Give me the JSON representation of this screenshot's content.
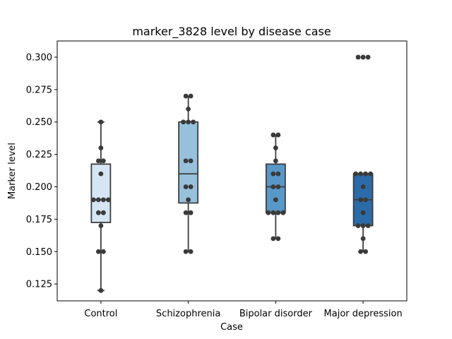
{
  "chart_data": {
    "type": "box",
    "title": "marker_3828 level by disease case",
    "xlabel": "Case",
    "ylabel": "Marker level",
    "ylim": [
      0.112,
      0.3125
    ],
    "yticks": [
      "0.125",
      "0.150",
      "0.175",
      "0.200",
      "0.225",
      "0.250",
      "0.275",
      "0.300"
    ],
    "categories": [
      "Control",
      "Schizophrenia",
      "Bipolar disorder",
      "Major depression"
    ],
    "box_colors": [
      "#d6e5f4",
      "#97c0db",
      "#5898c8",
      "#2b6ba9"
    ],
    "point_color": "#3a3a3a",
    "series": [
      {
        "box": {
          "q1": 0.1725,
          "median": 0.19,
          "q3": 0.2175,
          "whisker_low": 0.12,
          "whisker_high": 0.25
        },
        "points": [
          0.25,
          0.23,
          0.22,
          0.22,
          0.21,
          0.19,
          0.19,
          0.19,
          0.19,
          0.18,
          0.18,
          0.17,
          0.15,
          0.15,
          0.12
        ]
      },
      {
        "box": {
          "q1": 0.1875,
          "median": 0.21,
          "q3": 0.25,
          "whisker_low": 0.15,
          "whisker_high": 0.27
        },
        "points": [
          0.27,
          0.27,
          0.26,
          0.25,
          0.25,
          0.25,
          0.22,
          0.22,
          0.2,
          0.2,
          0.19,
          0.18,
          0.18,
          0.15,
          0.15
        ]
      },
      {
        "box": {
          "q1": 0.18,
          "median": 0.2,
          "q3": 0.2175,
          "whisker_low": 0.16,
          "whisker_high": 0.24
        },
        "points": [
          0.24,
          0.24,
          0.23,
          0.22,
          0.21,
          0.21,
          0.2,
          0.2,
          0.19,
          0.18,
          0.18,
          0.18,
          0.18,
          0.16,
          0.16
        ]
      },
      {
        "box": {
          "q1": 0.17,
          "median": 0.19,
          "q3": 0.21,
          "whisker_low": 0.15,
          "whisker_high": 0.21
        },
        "points": [
          0.3,
          0.3,
          0.3,
          0.21,
          0.21,
          0.21,
          0.21,
          0.2,
          0.19,
          0.19,
          0.18,
          0.17,
          0.17,
          0.17,
          0.16,
          0.15,
          0.15
        ]
      }
    ]
  }
}
